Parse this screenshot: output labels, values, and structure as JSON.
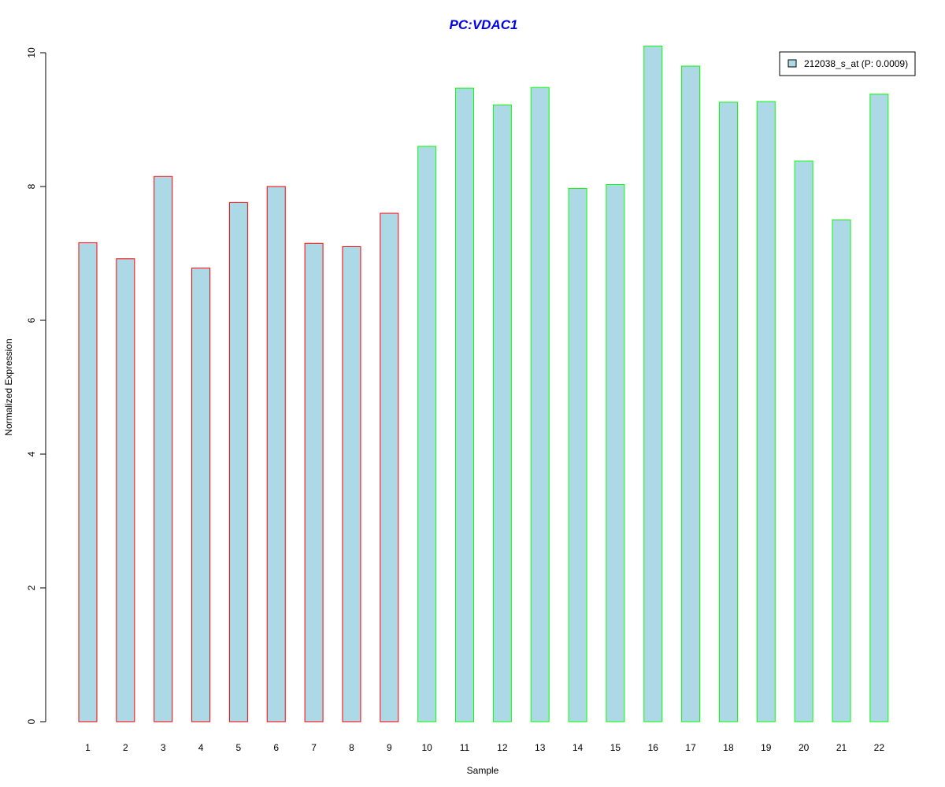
{
  "chart_data": {
    "type": "bar",
    "title": "PC:VDAC1",
    "title_color": "#0000ee",
    "xlabel": "Sample",
    "ylabel": "Normalized Expression",
    "ylim": [
      0,
      10
    ],
    "yticks": [
      "0",
      "2",
      "4",
      "6",
      "8",
      "10"
    ],
    "categories": [
      "1",
      "2",
      "3",
      "4",
      "5",
      "6",
      "7",
      "8",
      "9",
      "10",
      "11",
      "12",
      "13",
      "14",
      "15",
      "16",
      "17",
      "18",
      "19",
      "20",
      "21",
      "22"
    ],
    "series": [
      {
        "name": "212038_s_at (P: 0.0009)",
        "values": [
          7.16,
          6.92,
          8.15,
          6.78,
          7.76,
          8.0,
          7.15,
          7.1,
          7.6,
          8.6,
          9.47,
          9.22,
          9.48,
          7.97,
          8.03,
          10.1,
          9.8,
          9.26,
          9.27,
          8.38,
          7.5,
          9.38
        ],
        "fill": "#add8e6"
      }
    ],
    "group_outline_colors": [
      "#ff0000",
      "#ff0000",
      "#ff0000",
      "#ff0000",
      "#ff0000",
      "#ff0000",
      "#ff0000",
      "#ff0000",
      "#ff0000",
      "#00ff00",
      "#00ff00",
      "#00ff00",
      "#00ff00",
      "#00ff00",
      "#00ff00",
      "#00ff00",
      "#00ff00",
      "#00ff00",
      "#00ff00",
      "#00ff00",
      "#00ff00",
      "#00ff00"
    ],
    "grid": false,
    "legend_position": "top-right",
    "legend_label": "212038_s_at (P: 0.0009)"
  }
}
